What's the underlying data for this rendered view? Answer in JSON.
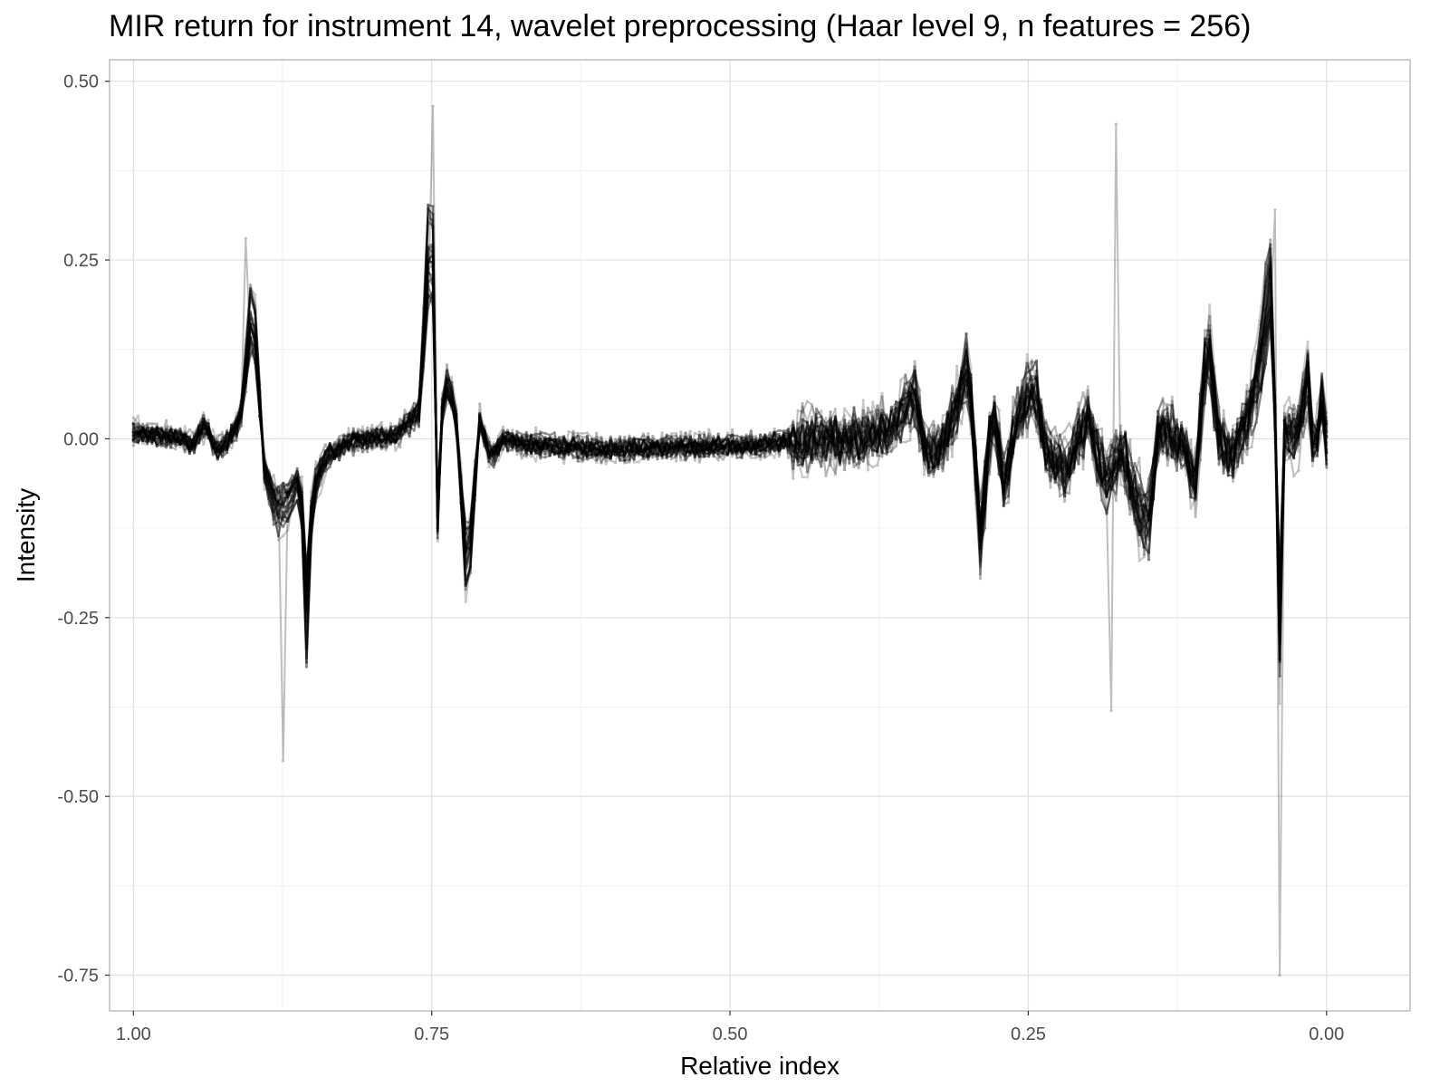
{
  "chart_data": {
    "type": "line",
    "title": "MIR return for instrument 14, wavelet preprocessing (Haar level 9, n features = 256)",
    "xlabel": "Relative index",
    "ylabel": "Intensity",
    "x_reversed": true,
    "xlim": [
      1.02,
      -0.07
    ],
    "ylim": [
      -0.8,
      0.53
    ],
    "x_ticks": [
      1.0,
      0.75,
      0.5,
      0.25,
      0.0
    ],
    "x_tick_labels": [
      "1.00",
      "0.75",
      "0.50",
      "0.25",
      "0.00"
    ],
    "y_ticks": [
      0.5,
      0.25,
      0.0,
      -0.25,
      -0.5,
      -0.75
    ],
    "y_tick_labels": [
      "0.50",
      "0.25",
      "0.00",
      "-0.25",
      "-0.50",
      "-0.75"
    ],
    "grid": true,
    "legend": "none",
    "line_color": "#000000",
    "series_count_approx": 30,
    "typical_profile": [
      [
        1.0,
        0.01
      ],
      [
        0.98,
        0.005
      ],
      [
        0.96,
        0.0
      ],
      [
        0.95,
        -0.01
      ],
      [
        0.94,
        0.02
      ],
      [
        0.93,
        -0.02
      ],
      [
        0.915,
        0.01
      ],
      [
        0.91,
        0.03
      ],
      [
        0.9,
        0.2
      ],
      [
        0.89,
        -0.05
      ],
      [
        0.88,
        -0.1
      ],
      [
        0.87,
        -0.09
      ],
      [
        0.86,
        -0.05
      ],
      [
        0.855,
        -0.25
      ],
      [
        0.85,
        -0.08
      ],
      [
        0.84,
        -0.03
      ],
      [
        0.82,
        -0.005
      ],
      [
        0.8,
        0.0
      ],
      [
        0.78,
        0.005
      ],
      [
        0.76,
        0.04
      ],
      [
        0.75,
        0.35
      ],
      [
        0.745,
        -0.12
      ],
      [
        0.74,
        0.09
      ],
      [
        0.73,
        0.04
      ],
      [
        0.72,
        -0.21
      ],
      [
        0.71,
        0.03
      ],
      [
        0.7,
        -0.03
      ],
      [
        0.69,
        0.0
      ],
      [
        0.66,
        -0.01
      ],
      [
        0.6,
        -0.015
      ],
      [
        0.55,
        -0.012
      ],
      [
        0.5,
        -0.01
      ],
      [
        0.45,
        -0.005
      ],
      [
        0.42,
        -0.003
      ],
      [
        0.4,
        0.0
      ],
      [
        0.37,
        0.01
      ],
      [
        0.345,
        0.06
      ],
      [
        0.335,
        -0.02
      ],
      [
        0.32,
        -0.01
      ],
      [
        0.3,
        0.11
      ],
      [
        0.29,
        -0.15
      ],
      [
        0.28,
        0.05
      ],
      [
        0.27,
        -0.07
      ],
      [
        0.26,
        0.03
      ],
      [
        0.245,
        0.08
      ],
      [
        0.235,
        -0.02
      ],
      [
        0.22,
        -0.05
      ],
      [
        0.2,
        0.03
      ],
      [
        0.185,
        -0.06
      ],
      [
        0.17,
        -0.02
      ],
      [
        0.16,
        -0.09
      ],
      [
        0.15,
        -0.13
      ],
      [
        0.14,
        0.02
      ],
      [
        0.12,
        -0.01
      ],
      [
        0.11,
        -0.06
      ],
      [
        0.1,
        0.15
      ],
      [
        0.09,
        0.0
      ],
      [
        0.08,
        -0.03
      ],
      [
        0.06,
        0.06
      ],
      [
        0.045,
        0.25
      ],
      [
        0.04,
        -0.33
      ],
      [
        0.035,
        0.02
      ],
      [
        0.025,
        0.0
      ],
      [
        0.015,
        0.1
      ],
      [
        0.01,
        -0.05
      ],
      [
        0.005,
        0.07
      ],
      [
        0.0,
        0.0
      ]
    ],
    "extremes": {
      "max": {
        "x": 0.75,
        "y": 0.465
      },
      "min": {
        "x": 0.04,
        "y": -0.75
      },
      "other_peaks": [
        {
          "x": 0.905,
          "y": 0.28
        },
        {
          "x": 0.875,
          "y": -0.45
        },
        {
          "x": 0.175,
          "y": 0.44
        },
        {
          "x": 0.18,
          "y": -0.38
        },
        {
          "x": 0.045,
          "y": 0.32
        }
      ]
    }
  }
}
